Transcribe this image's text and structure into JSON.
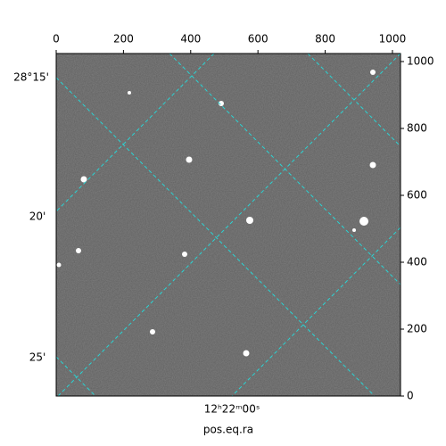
{
  "chart_data": {
    "type": "image",
    "xlim": [
      0,
      1024
    ],
    "ylim": [
      0,
      1024
    ],
    "xticks": [
      0,
      200,
      400,
      600,
      800,
      1000
    ],
    "yticks": [
      0,
      200,
      400,
      600,
      800,
      1000
    ],
    "dec_labels": [
      "28°15'",
      "20'",
      "25'"
    ],
    "ra_labels": [
      "12ʰ22ᵐ00ˢ"
    ],
    "xlabel": "pos.eq.ra"
  }
}
